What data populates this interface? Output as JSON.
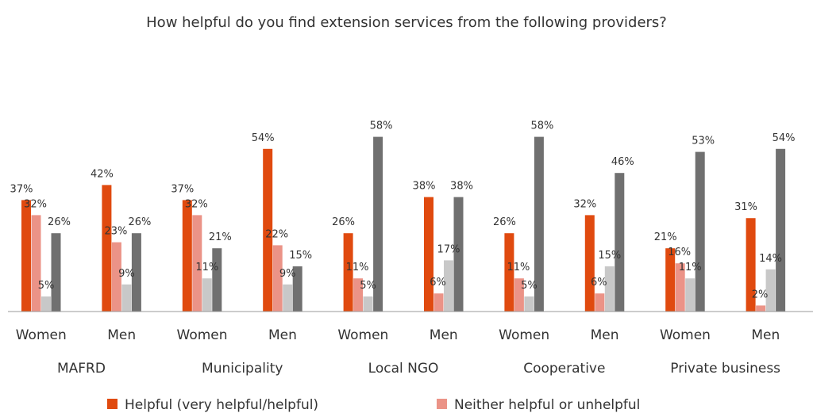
{
  "chart_data": {
    "type": "bar",
    "title": "How helpful do you find extension services from the following providers?",
    "groups": [
      "MAFRD",
      "Municipality",
      "Local NGO",
      "Cooperative",
      "Private business"
    ],
    "subgroups": [
      "Women",
      "Men"
    ],
    "categories": [
      "MAFRD Women",
      "MAFRD Men",
      "Municipality Women",
      "Municipality Men",
      "Local NGO Women",
      "Local NGO Men",
      "Cooperative Women",
      "Cooperative Men",
      "Private business Women",
      "Private business Men"
    ],
    "series": [
      {
        "name": "Helpful (very helpful/helpful)",
        "color": "#e04a0f",
        "values": [
          37,
          42,
          37,
          54,
          26,
          38,
          26,
          32,
          21,
          31
        ]
      },
      {
        "name": "Neither helpful or unhelpful",
        "color": "#eb9387",
        "values": [
          32,
          23,
          32,
          22,
          11,
          6,
          11,
          6,
          16,
          2
        ]
      },
      {
        "name": "",
        "color": "#c8c8c8",
        "values": [
          5,
          9,
          11,
          9,
          5,
          17,
          5,
          15,
          11,
          14
        ]
      },
      {
        "name": "",
        "color": "#707070",
        "values": [
          26,
          26,
          21,
          15,
          58,
          38,
          58,
          46,
          53,
          54
        ]
      }
    ],
    "value_format": "%",
    "ylim": [
      0,
      60
    ],
    "legend_position": "bottom",
    "grid": false
  }
}
